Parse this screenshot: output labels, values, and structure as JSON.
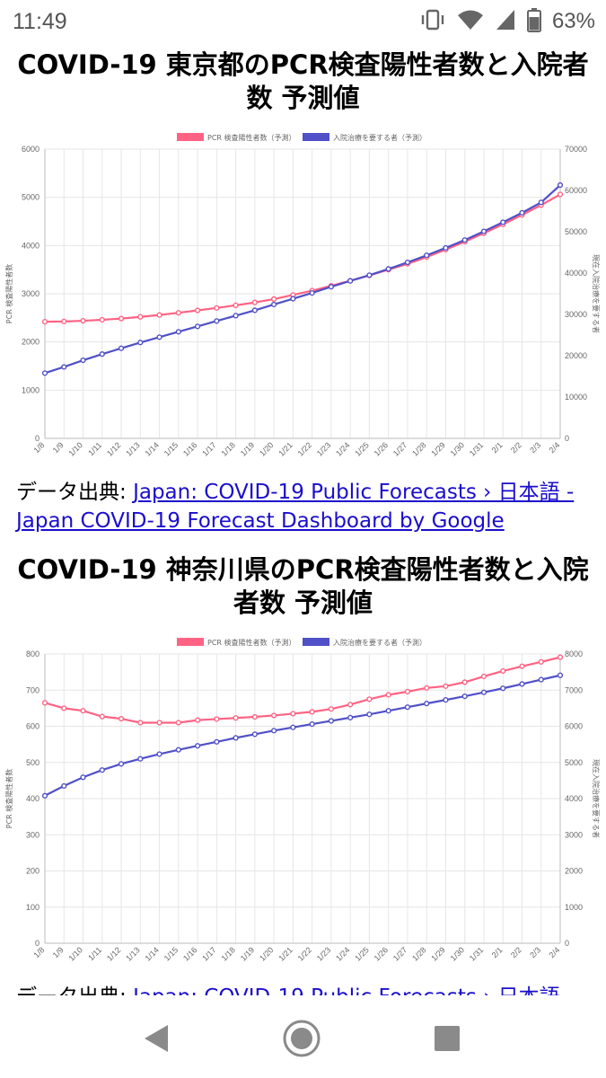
{
  "status": {
    "time": "11:49",
    "battery": "63%"
  },
  "source_prefix": "データ出典: ",
  "source_link_text": "Japan: COVID-19 Public Forecasts › 日本語 - Japan COVID-19 Forecast Dashboard by Google",
  "charts": [
    {
      "title": "COVID-19 東京都のPCR検査陽性者数と入院者数 予測値"
    },
    {
      "title": "COVID-19 神奈川県のPCR検査陽性者数と入院者数 予測値"
    }
  ],
  "chart_data": [
    {
      "type": "line",
      "title": "COVID-19 東京都のPCR検査陽性者数と入院者数 予測値",
      "x": [
        "1/8",
        "1/9",
        "1/10",
        "1/11",
        "1/12",
        "1/13",
        "1/14",
        "1/15",
        "1/16",
        "1/17",
        "1/18",
        "1/19",
        "1/20",
        "1/21",
        "1/22",
        "1/23",
        "1/24",
        "1/25",
        "1/26",
        "1/27",
        "1/28",
        "1/29",
        "1/30",
        "1/31",
        "2/1",
        "2/2",
        "2/3",
        "2/4"
      ],
      "ylabel": "PCR 検査陽性者数",
      "y2label": "現在入院治療を要する者",
      "ylim": [
        0,
        6000
      ],
      "y2lim": [
        0,
        70000
      ],
      "yticks": [
        0,
        1000,
        2000,
        3000,
        4000,
        5000,
        6000
      ],
      "y2ticks": [
        0,
        10000,
        20000,
        30000,
        40000,
        50000,
        60000,
        70000
      ],
      "legend_position": "top",
      "grid": true,
      "series": [
        {
          "name": "PCR 検査陽性者数（予測）",
          "axis": "left",
          "color": "#ff6384",
          "values": [
            2420,
            2425,
            2440,
            2460,
            2485,
            2520,
            2560,
            2605,
            2655,
            2705,
            2760,
            2820,
            2890,
            2975,
            3065,
            3165,
            3270,
            3380,
            3500,
            3620,
            3760,
            3915,
            4080,
            4255,
            4440,
            4635,
            4840,
            5060
          ]
        },
        {
          "name": "入院治療を要する者（予測）",
          "axis": "right",
          "color": "#5050c8",
          "values": [
            15800,
            17300,
            18900,
            20400,
            21800,
            23200,
            24500,
            25800,
            27100,
            28400,
            29700,
            31000,
            32400,
            33800,
            35200,
            36700,
            38100,
            39500,
            41000,
            42600,
            44300,
            46100,
            48000,
            50100,
            52300,
            54600,
            57100,
            61300
          ]
        }
      ]
    },
    {
      "type": "line",
      "title": "COVID-19 神奈川県のPCR検査陽性者数と入院者数 予測値",
      "x": [
        "1/8",
        "1/9",
        "1/10",
        "1/11",
        "1/12",
        "1/13",
        "1/14",
        "1/15",
        "1/16",
        "1/17",
        "1/18",
        "1/19",
        "1/20",
        "1/21",
        "1/22",
        "1/23",
        "1/24",
        "1/25",
        "1/26",
        "1/27",
        "1/28",
        "1/29",
        "1/30",
        "1/31",
        "2/1",
        "2/2",
        "2/3",
        "2/4"
      ],
      "ylabel": "PCR 検査陽性者数",
      "y2label": "現在入院治療を要する者",
      "ylim": [
        0,
        800
      ],
      "y2lim": [
        0,
        8000
      ],
      "yticks": [
        0,
        100,
        200,
        300,
        400,
        500,
        600,
        700,
        800
      ],
      "y2ticks": [
        0,
        1000,
        2000,
        3000,
        4000,
        5000,
        6000,
        7000,
        8000
      ],
      "legend_position": "top",
      "grid": true,
      "series": [
        {
          "name": "PCR 検査陽性者数（予測）",
          "axis": "left",
          "color": "#ff6384",
          "values": [
            665,
            650,
            643,
            627,
            621,
            610,
            610,
            610,
            617,
            620,
            623,
            626,
            630,
            635,
            640,
            648,
            660,
            675,
            687,
            696,
            706,
            711,
            722,
            738,
            753,
            766,
            778,
            791
          ]
        },
        {
          "name": "入院治療を要する者（予測）",
          "axis": "right",
          "color": "#5050c8",
          "values": [
            4080,
            4350,
            4590,
            4790,
            4960,
            5100,
            5230,
            5350,
            5460,
            5570,
            5680,
            5780,
            5880,
            5970,
            6060,
            6150,
            6240,
            6330,
            6430,
            6530,
            6630,
            6730,
            6830,
            6940,
            7050,
            7170,
            7290,
            7410
          ]
        }
      ]
    }
  ]
}
